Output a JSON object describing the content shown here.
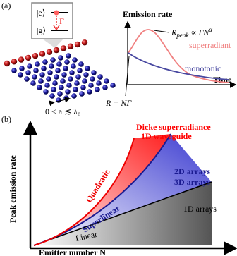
{
  "panel_a": {
    "label": "(a)",
    "excited_state": "|e⟩",
    "ground_state": "|g⟩",
    "decay_rate": "Γ",
    "spacing": "0 < a ≲ λ₀",
    "y_axis_label": "Emission rate",
    "x_axis_label": "Time",
    "peak_formula": {
      "base": "R",
      "subscript": "peak",
      "middle": " ∝ ΓN",
      "superscript": "α"
    },
    "curve_superradiant": "superradiant",
    "curve_monotonic": "monotonic",
    "initial_rate": "R = NΓ"
  },
  "panel_b": {
    "label": "(b)",
    "y_axis_label": "Peak emission rate",
    "x_axis_label": "Emitter number N",
    "dicke_line1": "Dicke superradiance",
    "dicke_line2": "1D waveguide",
    "quadratic": "Quadratic",
    "arrays_2d": "2D arrays",
    "arrays_3d": "3D arrays",
    "superlinear": "Superlinear",
    "arrays_1d": "1D arrays",
    "linear": "Linear"
  }
}
